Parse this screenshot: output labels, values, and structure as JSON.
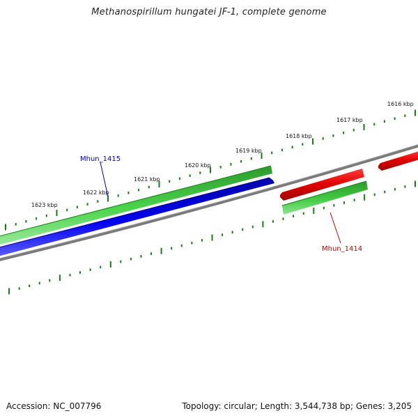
{
  "title": "Methanospirillum hungatei JF-1, complete genome",
  "footer": {
    "accession": "Accession: NC_007796",
    "summary": "Topology: circular; Length: 3,544,738 bp; Genes: 3,205"
  },
  "ticks": [
    {
      "label": "1616 kbp"
    },
    {
      "label": "1617 kbp"
    },
    {
      "label": "1618 kbp"
    },
    {
      "label": "1619 kbp"
    },
    {
      "label": "1620 kbp"
    },
    {
      "label": "1621 kbp"
    },
    {
      "label": "1622 kbp"
    },
    {
      "label": "1623 kbp"
    }
  ],
  "genes": [
    {
      "name": "Mhun_1415",
      "color": "#0000cc"
    },
    {
      "name": "Mhun_1414",
      "color": "#cc0000"
    }
  ],
  "colors": {
    "tick": "#1a7a1a",
    "cds_green": "#33bb33",
    "cds_blue": "#0000dd",
    "cds_red": "#dd0000",
    "backbone": "#808080"
  }
}
